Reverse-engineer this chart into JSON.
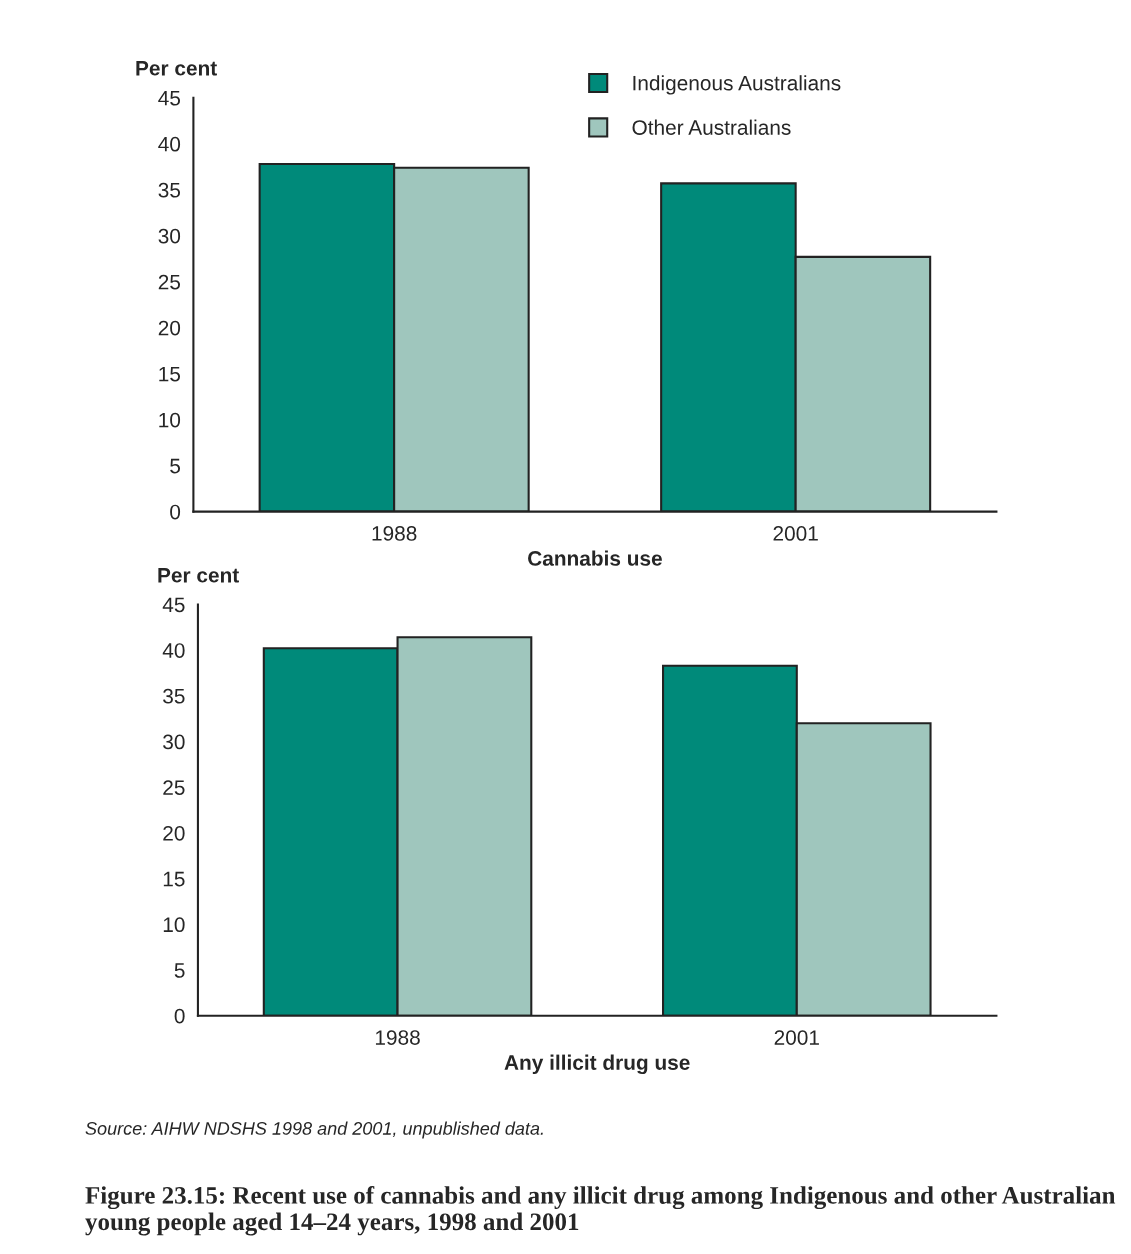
{
  "chart_data": [
    {
      "type": "bar",
      "xlabel": "Cannabis use",
      "ylabel": "Per cent",
      "categories": [
        "1988",
        "2001"
      ],
      "series": [
        {
          "name": "Indigenous Australians",
          "color": "#008a7a",
          "values": [
            37.8,
            35.7
          ]
        },
        {
          "name": "Other Australians",
          "color": "#9fc6bd",
          "values": [
            37.4,
            27.7
          ]
        }
      ],
      "ylim": [
        0,
        45
      ],
      "yticks": [
        0,
        5,
        10,
        15,
        20,
        25,
        30,
        35,
        40,
        45
      ],
      "grid": false,
      "legend": "top right"
    },
    {
      "type": "bar",
      "xlabel": "Any illicit drug use",
      "ylabel": "Per cent",
      "categories": [
        "1988",
        "2001"
      ],
      "series": [
        {
          "color": "#008a7a",
          "values": [
            40.2,
            38.3
          ]
        },
        {
          "color": "#9fc6bd",
          "values": [
            41.4,
            32.0
          ]
        }
      ],
      "ylim": [
        0,
        45
      ],
      "yticks": [
        0,
        5,
        10,
        15,
        20,
        25,
        30,
        35,
        40,
        45
      ],
      "grid": false,
      "annotations": [
        "Source: AIHW NDSHS 1998 and 2001, unpublished data.",
        "Figure 23.15: Recent use of cannabis and any illicit drug among Indigenous and other Australian young people aged 14–24 years, 1998 and 2001"
      ]
    }
  ]
}
